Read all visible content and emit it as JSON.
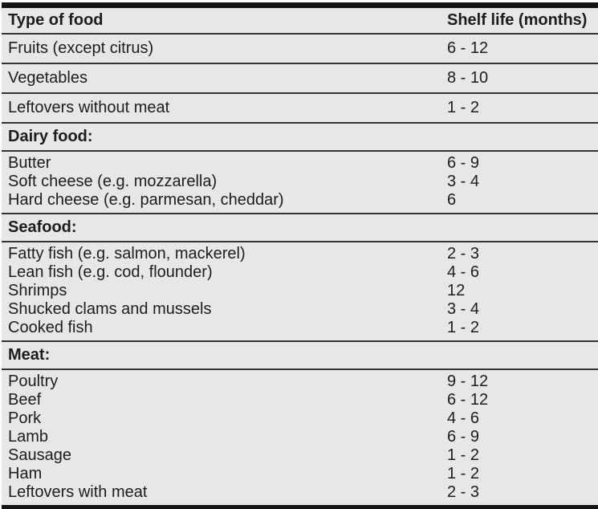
{
  "colors": {
    "table_background": "#e7e7e7",
    "row_line": "#333333",
    "outer_border": "#141414",
    "text": "#1d1d1d",
    "page_background": "#ffffff"
  },
  "table": {
    "columns": [
      {
        "label": "Type of food"
      },
      {
        "label": "Shelf life (months)"
      }
    ],
    "body": [
      {
        "kind": "row",
        "food": "Fruits (except citrus)",
        "shelf_life": "6 - 12"
      },
      {
        "kind": "row",
        "food": "Vegetables",
        "shelf_life": "8 - 10"
      },
      {
        "kind": "row",
        "food": "Leftovers without meat",
        "shelf_life": "1 - 2"
      },
      {
        "kind": "section",
        "label": "Dairy food:"
      },
      {
        "kind": "group",
        "items": [
          {
            "food": "Butter",
            "shelf_life": "6 - 9"
          },
          {
            "food": "Soft cheese (e.g. mozzarella)",
            "shelf_life": "3 - 4"
          },
          {
            "food": "Hard cheese (e.g. parmesan, cheddar)",
            "shelf_life": "6"
          }
        ]
      },
      {
        "kind": "section",
        "label": "Seafood:"
      },
      {
        "kind": "group",
        "items": [
          {
            "food": "Fatty fish (e.g. salmon, mackerel)",
            "shelf_life": "2 - 3"
          },
          {
            "food": "Lean fish (e.g. cod, flounder)",
            "shelf_life": "4 - 6"
          },
          {
            "food": "Shrimps",
            "shelf_life": "12"
          },
          {
            "food": "Shucked clams and mussels",
            "shelf_life": "3 - 4"
          },
          {
            "food": "Cooked fish",
            "shelf_life": "1 - 2"
          }
        ]
      },
      {
        "kind": "section",
        "label": "Meat:"
      },
      {
        "kind": "group",
        "items": [
          {
            "food": "Poultry",
            "shelf_life": "9 - 12"
          },
          {
            "food": "Beef",
            "shelf_life": "6 - 12"
          },
          {
            "food": "Pork",
            "shelf_life": "4 - 6"
          },
          {
            "food": "Lamb",
            "shelf_life": "6 - 9"
          },
          {
            "food": "Sausage",
            "shelf_life": "1 - 2"
          },
          {
            "food": "Ham",
            "shelf_life": "1 - 2"
          },
          {
            "food": "Leftovers with meat",
            "shelf_life": "2 - 3"
          }
        ]
      }
    ]
  }
}
